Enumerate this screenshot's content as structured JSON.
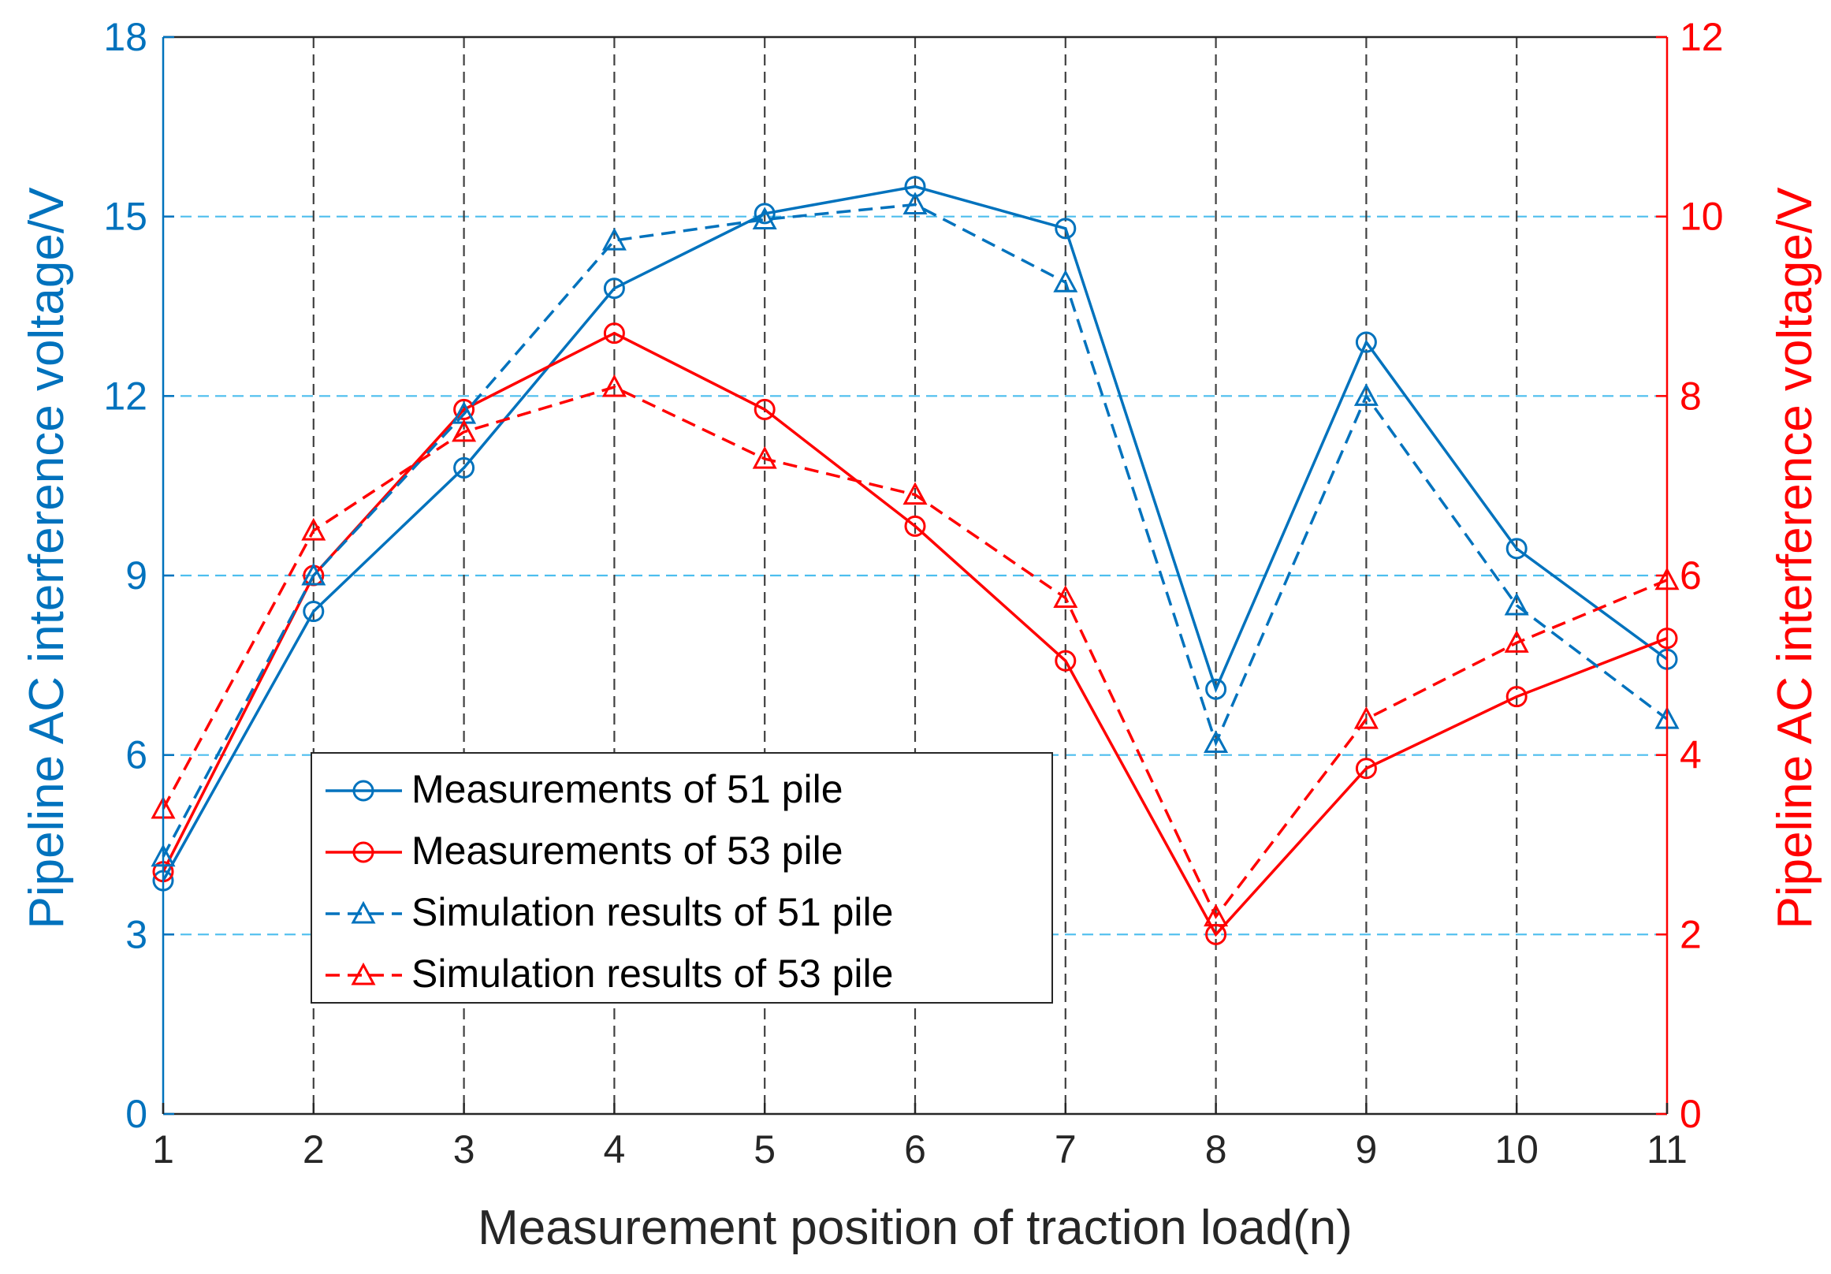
{
  "chart_data": {
    "type": "line",
    "title": "",
    "xlabel": "Measurement position of traction load(n)",
    "ylabel_left": "Pipeline AC interference voltage/V",
    "ylabel_right": "Pipeline AC interference voltage/V",
    "x": [
      1,
      2,
      3,
      4,
      5,
      6,
      7,
      8,
      9,
      10,
      11
    ],
    "xlim": [
      1,
      11
    ],
    "x_ticks": [
      "1",
      "2",
      "3",
      "4",
      "5",
      "6",
      "7",
      "8",
      "9",
      "10",
      "11"
    ],
    "ylim_left": [
      0,
      18
    ],
    "y_ticks_left": [
      "0",
      "3",
      "6",
      "9",
      "12",
      "15",
      "18"
    ],
    "ylim_right": [
      0,
      12
    ],
    "y_ticks_right": [
      "0",
      "2",
      "4",
      "6",
      "8",
      "10",
      "12"
    ],
    "grid": "dashed",
    "legend_position": "lower-left",
    "colors": {
      "blue": "#0072BD",
      "red": "#FF0000",
      "grid_h": "#4DBEEE",
      "grid_v": "#404040"
    },
    "series": [
      {
        "name": "Measurements of 51 pile",
        "axis": "left",
        "color": "#0072BD",
        "line": "solid",
        "marker": "circle",
        "values": [
          3.9,
          8.4,
          10.8,
          13.8,
          15.05,
          15.5,
          14.8,
          7.1,
          12.9,
          9.45,
          7.6
        ]
      },
      {
        "name": "Measurements of 53 pile",
        "axis": "right",
        "color": "#FF0000",
        "line": "solid",
        "marker": "circle",
        "values": [
          2.7,
          6.0,
          7.85,
          8.7,
          7.85,
          6.55,
          5.05,
          2.0,
          3.85,
          4.65,
          5.3
        ]
      },
      {
        "name": "Simulation results of 51 pile",
        "axis": "left",
        "color": "#0072BD",
        "line": "dashed",
        "marker": "triangle",
        "values": [
          4.3,
          9.0,
          11.7,
          14.6,
          14.95,
          15.2,
          13.9,
          6.2,
          12.0,
          8.5,
          6.6
        ]
      },
      {
        "name": "Simulation results of 53 pile",
        "axis": "right",
        "color": "#FF0000",
        "line": "dashed",
        "marker": "triangle",
        "values": [
          3.4,
          6.5,
          7.6,
          8.1,
          7.3,
          6.9,
          5.75,
          2.2,
          4.4,
          5.25,
          5.95
        ]
      }
    ]
  }
}
